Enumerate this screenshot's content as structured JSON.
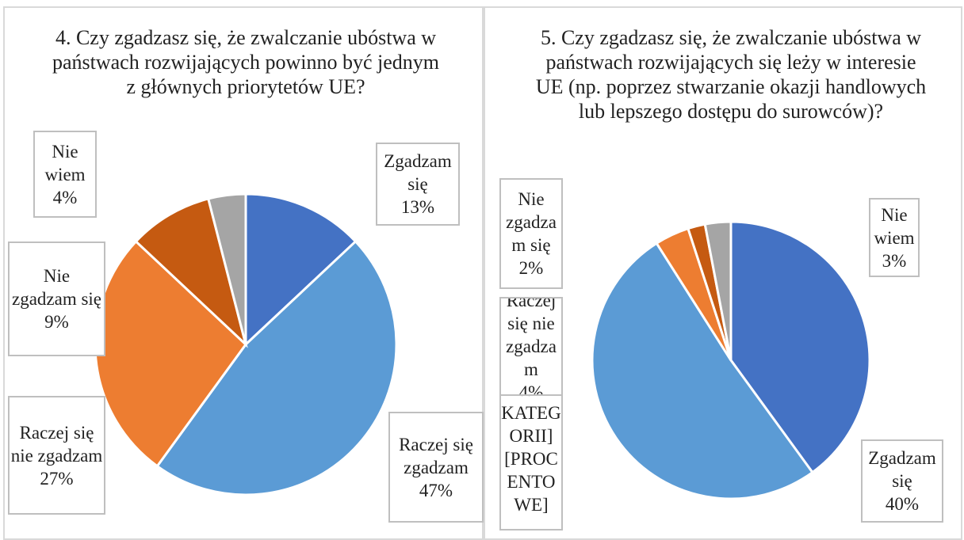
{
  "chart_data": [
    {
      "type": "pie",
      "title": "4. Czy zgadzasz się, że zwalczanie ubóstwa w państwach rozwijających powinno być jednym z głównych priorytetów UE?",
      "categories": [
        "Zgadzam się",
        "Raczej się zgadzam",
        "Raczej się nie zgadzam",
        "Nie zgadzam się",
        "Nie wiem"
      ],
      "values": [
        13,
        47,
        27,
        9,
        4
      ],
      "value_labels": [
        "13%",
        "47%",
        "27%",
        "9%",
        "4%"
      ],
      "colors": [
        "#4472c4",
        "#5b9bd5",
        "#ed7d31",
        "#c55a11",
        "#a5a5a5"
      ]
    },
    {
      "type": "pie",
      "title": "5. Czy zgadzasz się, że zwalczanie ubóstwa w państwach rozwijających się leży w interesie UE (np. poprzez stwarzanie okazji handlowych lub lepszego dostępu do surowców)?",
      "categories": [
        "Zgadzam się",
        "[NAZWA KATEGORII]",
        "Raczej się nie zgadzam",
        "Nie zgadzam się",
        "Nie wiem"
      ],
      "values": [
        40,
        51,
        4,
        2,
        3
      ],
      "value_labels": [
        "40%",
        "[PROCENTOWE]",
        "4%",
        "2%",
        "3%"
      ],
      "colors": [
        "#4472c4",
        "#5b9bd5",
        "#ed7d31",
        "#c55a11",
        "#a5a5a5"
      ]
    }
  ]
}
